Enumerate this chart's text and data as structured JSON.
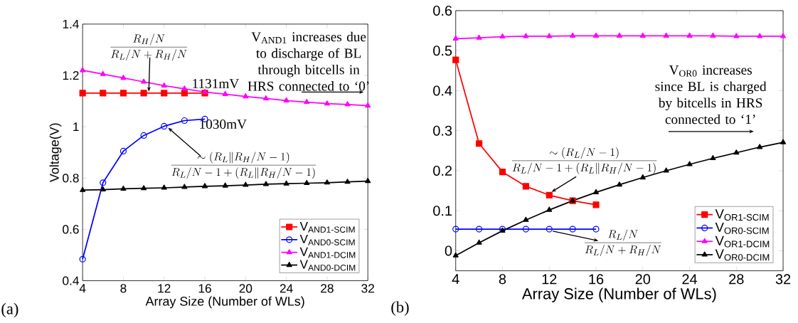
{
  "chart_data": [
    {
      "type": "line",
      "xlabel": "Array Size (Number of WLs)",
      "ylabel": "Voltage(V)",
      "x": [
        4,
        6,
        8,
        10,
        12,
        14,
        16,
        18,
        20,
        22,
        24,
        26,
        28,
        30,
        32
      ],
      "xlim": [
        4,
        32
      ],
      "ylim": [
        0.4,
        1.4
      ],
      "xticks": [
        4,
        8,
        12,
        16,
        20,
        24,
        28,
        32
      ],
      "yticks": [
        0.4,
        0.6,
        0.8,
        1,
        1.2,
        1.4
      ],
      "legend": "bottom right",
      "line_style": "solid",
      "series": [
        {
          "name": "V$_{AND1-SCIM}$",
          "color": "#ff0000",
          "marker": "square",
          "x": [
            4,
            6,
            8,
            10,
            12,
            14,
            16
          ],
          "values": [
            1.131,
            1.131,
            1.131,
            1.131,
            1.131,
            1.131,
            1.131
          ]
        },
        {
          "name": "V$_{AND0-SCIM}$",
          "color": "#0000ff",
          "marker": "circle",
          "x": [
            4,
            6,
            8,
            10,
            12,
            14,
            16
          ],
          "values": [
            0.484,
            0.782,
            0.905,
            0.966,
            1.002,
            1.024,
            1.03
          ]
        },
        {
          "name": "V$_{AND1-DCIM}$",
          "color": "#ff00ff",
          "marker": "triangle",
          "values": [
            1.22,
            1.205,
            1.19,
            1.175,
            1.16,
            1.148,
            1.135,
            1.127,
            1.118,
            1.11,
            1.102,
            1.096,
            1.09,
            1.087,
            1.082
          ]
        },
        {
          "name": "V$_{AND0-DCIM}$",
          "color": "#000000",
          "marker": "triangle",
          "values": [
            0.753,
            0.755,
            0.758,
            0.76,
            0.762,
            0.765,
            0.768,
            0.77,
            0.773,
            0.776,
            0.778,
            0.78,
            0.782,
            0.785,
            0.788
          ]
        }
      ],
      "annotations": [
        {
          "text": "\\frac{R_H/N}{R_L/N+R_H/N}",
          "x": 10.5,
          "y": 1.131
        },
        {
          "text": "1131mV",
          "x": 16,
          "y": 1.131
        },
        {
          "text": "1030mV",
          "x": 16,
          "y": 1.03
        },
        {
          "text": "\\frac{\\sim(R_L\\|R_H/N-1)}{R_L/N-1+(R_L\\|R_H/N-1)}",
          "x": 12,
          "y": 1.002
        },
        "V$_{AND1}$ increases due to discharge of BL through bitcells in HRS connected to ‘0’",
        "(a)"
      ]
    },
    {
      "type": "line",
      "xlabel": "Array Size (Number of WLs)",
      "x": [
        4,
        6,
        8,
        10,
        12,
        14,
        16,
        18,
        20,
        22,
        24,
        26,
        28,
        30,
        32
      ],
      "xlim": [
        4,
        32
      ],
      "ylim": [
        -0.05,
        0.6
      ],
      "xticks": [
        4,
        8,
        12,
        16,
        20,
        24,
        28,
        32
      ],
      "yticks": [
        0,
        0.1,
        0.2,
        0.3,
        0.4,
        0.5,
        0.6
      ],
      "legend": "bottom right",
      "line_style": "solid",
      "series": [
        {
          "name": "V$_{OR1-SCIM}$",
          "color": "#ff0000",
          "marker": "square",
          "x": [
            4,
            6,
            8,
            10,
            12,
            14,
            16
          ],
          "values": [
            0.477,
            0.268,
            0.197,
            0.161,
            0.139,
            0.125,
            0.115
          ]
        },
        {
          "name": "V$_{OR0-SCIM}$",
          "color": "#0000ff",
          "marker": "circle",
          "x": [
            4,
            6,
            8,
            10,
            12,
            14,
            16
          ],
          "values": [
            0.054,
            0.054,
            0.054,
            0.054,
            0.054,
            0.054,
            0.054
          ]
        },
        {
          "name": "V$_{OR1-DCIM}$",
          "color": "#ff00ff",
          "marker": "triangle",
          "values": [
            0.53,
            0.532,
            0.535,
            0.536,
            0.536,
            0.537,
            0.537,
            0.537,
            0.537,
            0.537,
            0.537,
            0.537,
            0.536,
            0.536,
            0.536
          ]
        },
        {
          "name": "V$_{OR0-DCIM}$",
          "color": "#000000",
          "marker": "triangle",
          "values": [
            -0.012,
            0.02,
            0.05,
            0.077,
            0.102,
            0.125,
            0.146,
            0.165,
            0.183,
            0.2,
            0.216,
            0.231,
            0.245,
            0.259,
            0.271
          ]
        }
      ],
      "annotations": [
        "V$_{OR0}$ increases since BL is charged by bitcells in HRS connected to ‘1’",
        {
          "text": "\\frac{\\sim(R_L/N-1)}{R_L/N-1+(R_L\\|R_H/N-1)}",
          "x": 12,
          "y": 0.139
        },
        {
          "text": "\\frac{R_L/N}{R_L/N+R_H/N}",
          "x": 12,
          "y": 0.054
        },
        "(b)"
      ]
    }
  ]
}
